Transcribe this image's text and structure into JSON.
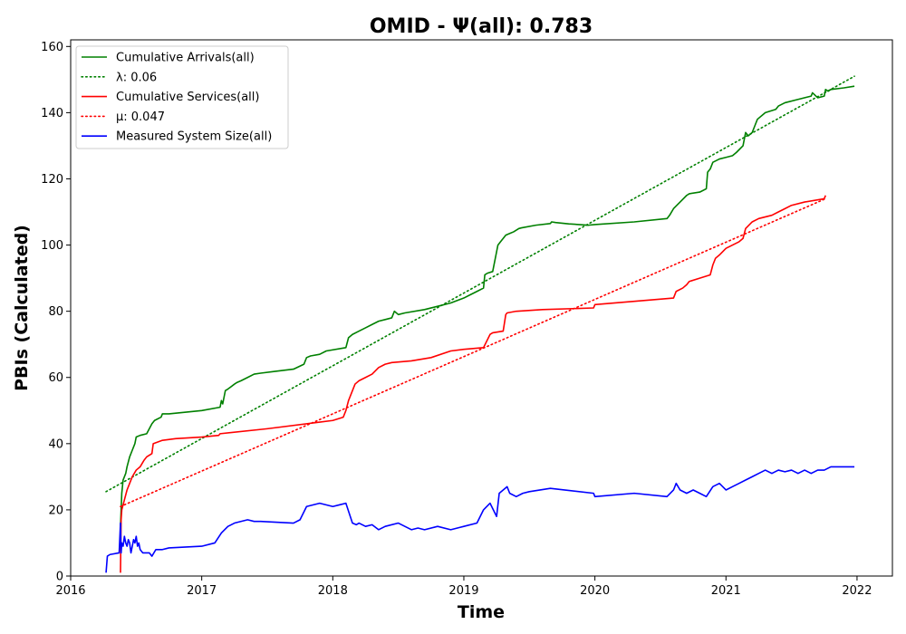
{
  "chart_data": {
    "type": "line",
    "title": "OMID -  Ψ(all): 0.783",
    "xlabel": "Time",
    "ylabel": "PBIs (Calculated)",
    "xlim": [
      2016.0,
      2022.27
    ],
    "ylim": [
      0,
      162
    ],
    "xticks": [
      2016,
      2017,
      2018,
      2019,
      2020,
      2021,
      2022
    ],
    "xtick_labels": [
      "2016",
      "2017",
      "2018",
      "2019",
      "2020",
      "2021",
      "2022"
    ],
    "yticks": [
      0,
      20,
      40,
      60,
      80,
      100,
      120,
      140,
      160
    ],
    "ytick_labels": [
      "0",
      "20",
      "40",
      "60",
      "80",
      "100",
      "120",
      "140",
      "160"
    ],
    "grid": false,
    "legend_position": "top-left",
    "series": [
      {
        "name": "Cumulative Arrivals(all)",
        "color": "#008000",
        "style": "solid",
        "x": [
          2016.38,
          2016.39,
          2016.4,
          2016.42,
          2016.43,
          2016.45,
          2016.47,
          2016.49,
          2016.5,
          2016.53,
          2016.58,
          2016.62,
          2016.64,
          2016.69,
          2016.7,
          2016.75,
          2017.0,
          2017.14,
          2017.15,
          2017.16,
          2017.18,
          2017.2,
          2017.25,
          2017.27,
          2017.3,
          2017.35,
          2017.4,
          2017.45,
          2017.55,
          2017.7,
          2017.78,
          2017.8,
          2017.83,
          2017.9,
          2017.95,
          2018.1,
          2018.12,
          2018.15,
          2018.2,
          2018.25,
          2018.3,
          2018.35,
          2018.4,
          2018.45,
          2018.47,
          2018.5,
          2018.55,
          2018.7,
          2018.8,
          2018.9,
          2019.0,
          2019.05,
          2019.1,
          2019.15,
          2019.16,
          2019.18,
          2019.22,
          2019.25,
          2019.26,
          2019.28,
          2019.3,
          2019.32,
          2019.35,
          2019.38,
          2019.42,
          2019.44,
          2019.55,
          2019.66,
          2019.67,
          2019.7,
          2019.8,
          2019.95,
          2020.0,
          2020.3,
          2020.55,
          2020.57,
          2020.6,
          2020.65,
          2020.7,
          2020.72,
          2020.8,
          2020.85,
          2020.86,
          2020.88,
          2020.9,
          2020.95,
          2021.0,
          2021.05,
          2021.08,
          2021.13,
          2021.15,
          2021.17,
          2021.2,
          2021.22,
          2021.24,
          2021.3,
          2021.38,
          2021.4,
          2021.45,
          2021.55,
          2021.65,
          2021.66,
          2021.7,
          2021.75,
          2021.76,
          2021.78,
          2021.8,
          2021.9,
          2021.98
        ],
        "values": [
          15,
          25,
          29,
          31,
          33,
          36,
          38,
          40,
          42,
          42.5,
          43,
          46,
          47,
          48,
          49,
          49,
          50,
          51,
          53,
          52,
          56,
          56.5,
          58,
          58.5,
          59,
          60,
          61,
          61.3,
          61.8,
          62.5,
          64,
          66,
          66.5,
          67,
          68,
          69,
          72,
          73,
          74,
          75,
          76,
          77,
          77.5,
          78,
          80,
          79,
          79.5,
          80.5,
          81.5,
          82.5,
          84,
          85,
          86,
          87,
          91,
          91.5,
          92,
          98,
          100,
          101,
          102,
          103,
          103.5,
          104,
          105,
          105.2,
          106,
          106.5,
          107,
          106.8,
          106.4,
          106,
          106.2,
          107,
          108,
          109,
          111,
          113,
          115,
          115.5,
          116,
          117,
          122,
          123,
          125,
          126,
          126.5,
          127,
          128,
          130,
          134,
          133,
          134,
          136,
          138,
          140,
          141,
          142,
          143,
          144,
          145,
          146,
          144.5,
          145,
          147,
          146.5,
          147,
          147.5,
          148
        ]
      },
      {
        "name": "λ: 0.06",
        "color": "#008000",
        "style": "dotted",
        "x": [
          2016.27,
          2021.98
        ],
        "values": [
          25.5,
          151
        ]
      },
      {
        "name": "Cumulative Services(all)",
        "color": "#ff0000",
        "style": "solid",
        "x": [
          2016.38,
          2016.385,
          2016.39,
          2016.41,
          2016.43,
          2016.45,
          2016.47,
          2016.5,
          2016.53,
          2016.56,
          2016.58,
          2016.62,
          2016.63,
          2016.7,
          2016.8,
          2017.0,
          2017.13,
          2017.14,
          2017.5,
          2017.9,
          2018.0,
          2018.08,
          2018.1,
          2018.12,
          2018.16,
          2018.17,
          2018.2,
          2018.25,
          2018.3,
          2018.35,
          2018.4,
          2018.45,
          2018.6,
          2018.75,
          2018.9,
          2019.0,
          2019.15,
          2019.2,
          2019.22,
          2019.3,
          2019.32,
          2019.33,
          2019.4,
          2019.6,
          2019.99,
          2020.0,
          2020.3,
          2020.6,
          2020.62,
          2020.67,
          2020.7,
          2020.72,
          2020.8,
          2020.88,
          2020.9,
          2020.92,
          2020.95,
          2021.0,
          2021.05,
          2021.1,
          2021.13,
          2021.15,
          2021.2,
          2021.25,
          2021.35,
          2021.4,
          2021.45,
          2021.5,
          2021.6,
          2021.75,
          2021.76
        ],
        "values": [
          1,
          17,
          20,
          23,
          26,
          28,
          30,
          32,
          33,
          35,
          36,
          37,
          40,
          41,
          41.5,
          42,
          42.5,
          43,
          44.5,
          46.5,
          47,
          48,
          50,
          53,
          57,
          58,
          59,
          60,
          61,
          63,
          64,
          64.5,
          65,
          66,
          68,
          68.5,
          69,
          73,
          73.5,
          74,
          79,
          79.5,
          80,
          80.5,
          81,
          82,
          83,
          84,
          86,
          87,
          88,
          89,
          90,
          91,
          94,
          96,
          97,
          99,
          100,
          101,
          102,
          105,
          107,
          108,
          109,
          110,
          111,
          112,
          113,
          114,
          115
        ]
      },
      {
        "name": "μ: 0.047",
        "color": "#ff0000",
        "style": "dotted",
        "x": [
          2016.38,
          2021.76
        ],
        "values": [
          21,
          114
        ]
      },
      {
        "name": "Measured System Size(all)",
        "color": "#0000ff",
        "style": "solid",
        "x": [
          2016.27,
          2016.28,
          2016.3,
          2016.37,
          2016.38,
          2016.385,
          2016.39,
          2016.4,
          2016.41,
          2016.42,
          2016.43,
          2016.44,
          2016.45,
          2016.46,
          2016.47,
          2016.48,
          2016.49,
          2016.5,
          2016.51,
          2016.52,
          2016.53,
          2016.55,
          2016.6,
          2016.62,
          2016.65,
          2016.7,
          2016.75,
          2017.0,
          2017.1,
          2017.15,
          2017.2,
          2017.25,
          2017.35,
          2017.4,
          2017.45,
          2017.7,
          2017.75,
          2017.8,
          2017.9,
          2018.0,
          2018.05,
          2018.1,
          2018.15,
          2018.18,
          2018.2,
          2018.25,
          2018.3,
          2018.35,
          2018.4,
          2018.5,
          2018.6,
          2018.65,
          2018.7,
          2018.8,
          2018.9,
          2019.0,
          2019.1,
          2019.15,
          2019.2,
          2019.25,
          2019.27,
          2019.3,
          2019.33,
          2019.35,
          2019.4,
          2019.45,
          2019.5,
          2019.66,
          2019.99,
          2020.0,
          2020.3,
          2020.55,
          2020.6,
          2020.62,
          2020.65,
          2020.7,
          2020.75,
          2020.8,
          2020.85,
          2020.9,
          2020.95,
          2021.0,
          2021.05,
          2021.1,
          2021.15,
          2021.2,
          2021.25,
          2021.3,
          2021.35,
          2021.4,
          2021.45,
          2021.5,
          2021.55,
          2021.6,
          2021.65,
          2021.7,
          2021.75,
          2021.8,
          2021.98
        ],
        "values": [
          1,
          6,
          6.5,
          7,
          16,
          7,
          10,
          9,
          12,
          10,
          9,
          11,
          10,
          7,
          9,
          11,
          10,
          12,
          9,
          10,
          8,
          7,
          7,
          6,
          8,
          8,
          8.5,
          9,
          10,
          13,
          15,
          16,
          17,
          16.5,
          16.5,
          16,
          17,
          21,
          22,
          21,
          21.5,
          22,
          16,
          15.5,
          16,
          15,
          15.5,
          14,
          15,
          16,
          14,
          14.5,
          14,
          15,
          14,
          15,
          16,
          20,
          22,
          18,
          25,
          26,
          27,
          25,
          24,
          25,
          25.5,
          26.5,
          25,
          24,
          25,
          24,
          26,
          28,
          26,
          25,
          26,
          25,
          24,
          27,
          28,
          26,
          27,
          28,
          29,
          30,
          31,
          32,
          31,
          32,
          31.5,
          32,
          31,
          32,
          31,
          32,
          32,
          33,
          33
        ]
      }
    ]
  }
}
